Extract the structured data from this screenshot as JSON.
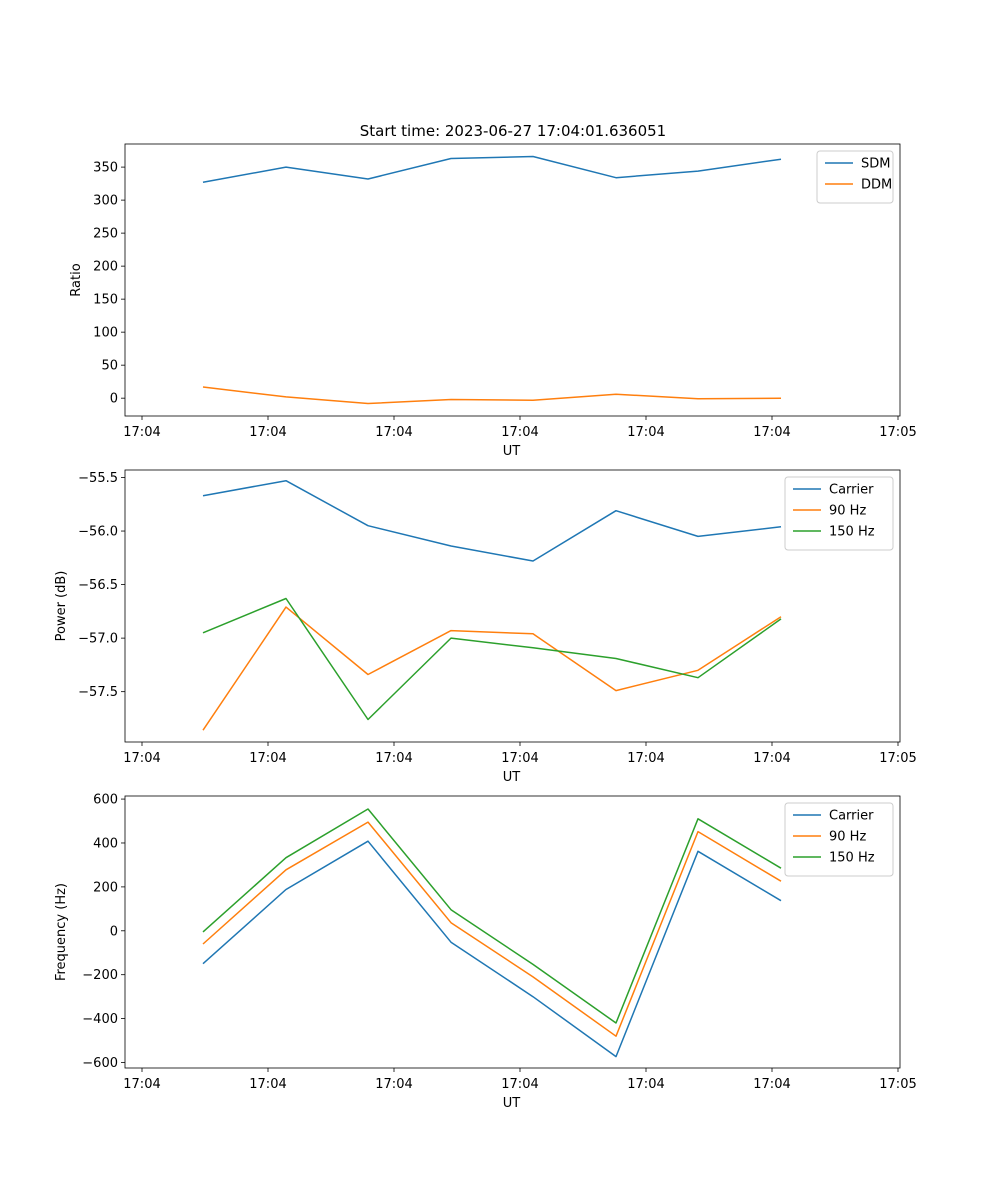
{
  "figure": {
    "title": "Start time: 2023-06-27 17:04:01.636051"
  },
  "chart_data": [
    {
      "type": "line",
      "title": "Start time: 2023-06-27 17:04:01.636051",
      "xlabel": "UT",
      "ylabel": "Ratio",
      "x_tick_labels": [
        "17:04",
        "17:04",
        "17:04",
        "17:04",
        "17:04",
        "17:04",
        "17:05"
      ],
      "y_ticks": [
        0,
        50,
        100,
        150,
        200,
        250,
        300,
        350
      ],
      "y_tick_labels": [
        "0",
        "50",
        "100",
        "150",
        "200",
        "250",
        "300",
        "350"
      ],
      "ylim": [
        -27,
        385
      ],
      "legend_position": "top-right",
      "series": [
        {
          "name": "SDM",
          "color": "#1f77b4",
          "values": [
            327,
            350,
            332,
            363,
            366,
            334,
            344,
            362
          ]
        },
        {
          "name": "DDM",
          "color": "#ff7f0e",
          "values": [
            17,
            2,
            -8,
            -2,
            -3,
            6,
            -1,
            0
          ]
        }
      ]
    },
    {
      "type": "line",
      "xlabel": "UT",
      "ylabel": "Power (dB)",
      "x_tick_labels": [
        "17:04",
        "17:04",
        "17:04",
        "17:04",
        "17:04",
        "17:04",
        "17:05"
      ],
      "y_ticks": [
        -57.5,
        -57.0,
        -56.5,
        -56.0,
        -55.5
      ],
      "y_tick_labels": [
        "−57.5",
        "−57.0",
        "−56.5",
        "−56.0",
        "−55.5"
      ],
      "ylim": [
        -57.97,
        -55.43
      ],
      "legend_position": "top-right",
      "series": [
        {
          "name": "Carrier",
          "color": "#1f77b4",
          "values": [
            -55.67,
            -55.53,
            -55.95,
            -56.14,
            -56.28,
            -55.81,
            -56.05,
            -55.96
          ]
        },
        {
          "name": "90 Hz",
          "color": "#ff7f0e",
          "values": [
            -57.86,
            -56.71,
            -57.34,
            -56.93,
            -56.96,
            -57.49,
            -57.3,
            -56.8
          ]
        },
        {
          "name": "150 Hz",
          "color": "#2ca02c",
          "values": [
            -56.95,
            -56.63,
            -57.76,
            -57.0,
            -57.09,
            -57.19,
            -57.37,
            -56.82
          ]
        }
      ]
    },
    {
      "type": "line",
      "xlabel": "UT",
      "ylabel": "Frequency (Hz)",
      "x_tick_labels": [
        "17:04",
        "17:04",
        "17:04",
        "17:04",
        "17:04",
        "17:04",
        "17:05"
      ],
      "y_ticks": [
        -600,
        -400,
        -200,
        0,
        200,
        400,
        600
      ],
      "y_tick_labels": [
        "−600",
        "−400",
        "−200",
        "0",
        "200",
        "400",
        "600"
      ],
      "ylim": [
        -625,
        614
      ],
      "legend_position": "top-right",
      "series": [
        {
          "name": "Carrier",
          "color": "#1f77b4",
          "values": [
            -150,
            188,
            408,
            -52,
            -300,
            -573,
            362,
            137
          ]
        },
        {
          "name": "90 Hz",
          "color": "#ff7f0e",
          "values": [
            -60,
            278,
            495,
            37,
            -210,
            -480,
            452,
            226
          ]
        },
        {
          "name": "150 Hz",
          "color": "#2ca02c",
          "values": [
            -5,
            333,
            555,
            96,
            -153,
            -420,
            510,
            285
          ]
        }
      ]
    }
  ]
}
